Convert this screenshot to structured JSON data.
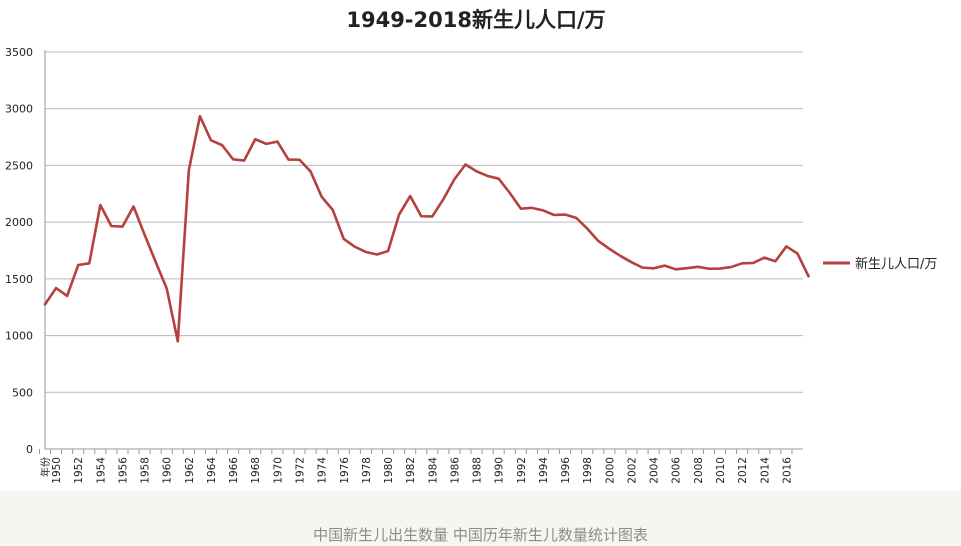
{
  "caption": "中国新生儿出生数量 中国历年新生儿数量统计图表",
  "colors": {
    "series": "#b5403f",
    "grid": "#b9b9b9",
    "axis": "#9a9a9a",
    "text": "#222222",
    "caption": "#8c8c8c",
    "caption_bg": "#f5f5f1"
  },
  "chart_data": {
    "type": "line",
    "title": "1949-2018新生儿人口/万",
    "xlabel": "",
    "ylabel": "",
    "first_tick_label": "年份",
    "ylim": [
      0,
      3500
    ],
    "yticks": [
      0,
      500,
      1000,
      1500,
      2000,
      2500,
      3000,
      3500
    ],
    "xticks": [
      1950,
      1952,
      1954,
      1956,
      1958,
      1960,
      1962,
      1964,
      1966,
      1968,
      1970,
      1972,
      1974,
      1976,
      1978,
      1980,
      1982,
      1984,
      1986,
      1988,
      1990,
      1992,
      1994,
      1996,
      1998,
      2000,
      2002,
      2004,
      2006,
      2008,
      2010,
      2012,
      2014,
      2016
    ],
    "grid": true,
    "legend": "right",
    "series": [
      {
        "name": "新生儿人口/万",
        "x": [
          1949,
          1950,
          1951,
          1952,
          1953,
          1954,
          1955,
          1956,
          1957,
          1958,
          1959,
          1960,
          1961,
          1962,
          1963,
          1964,
          1965,
          1966,
          1967,
          1968,
          1969,
          1970,
          1971,
          1972,
          1973,
          1974,
          1975,
          1976,
          1977,
          1978,
          1979,
          1980,
          1981,
          1982,
          1983,
          1984,
          1985,
          1986,
          1987,
          1988,
          1989,
          1990,
          1991,
          1992,
          1993,
          1994,
          1995,
          1996,
          1997,
          1998,
          1999,
          2000,
          2001,
          2002,
          2003,
          2004,
          2005,
          2006,
          2007,
          2008,
          2009,
          2010,
          2011,
          2012,
          2013,
          2014,
          2015,
          2016,
          2017,
          2018
        ],
        "values": [
          1275,
          1419,
          1349,
          1622,
          1637,
          2151,
          1965,
          1961,
          2138,
          1889,
          1650,
          1415,
          949,
          2460,
          2934,
          2721,
          2679,
          2554,
          2543,
          2731,
          2690,
          2710,
          2552,
          2550,
          2447,
          2224,
          2108,
          1852,
          1783,
          1737,
          1715,
          1745,
          2067,
          2230,
          2052,
          2050,
          2202,
          2378,
          2508,
          2448,
          2407,
          2383,
          2258,
          2119,
          2126,
          2104,
          2063,
          2067,
          2038,
          1943,
          1834,
          1765,
          1702,
          1647,
          1599,
          1593,
          1617,
          1584,
          1594,
          1606,
          1589,
          1591,
          1604,
          1637,
          1640,
          1687,
          1655,
          1786,
          1723,
          1523
        ]
      }
    ]
  }
}
